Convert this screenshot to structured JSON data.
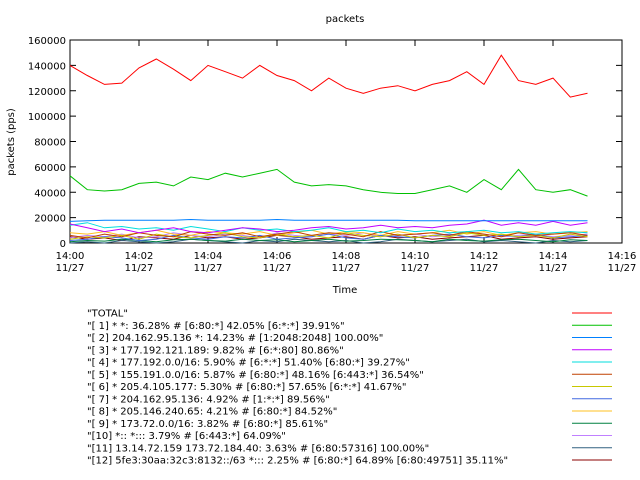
{
  "chart_data": {
    "type": "line",
    "title": "packets",
    "ylabel": "packets (pps)",
    "xlabel": "Time",
    "xlim": [
      0,
      16
    ],
    "ylim": [
      0,
      160000
    ],
    "yticks": [
      0,
      20000,
      40000,
      60000,
      80000,
      100000,
      120000,
      140000,
      160000
    ],
    "xticks": [
      {
        "value": 0,
        "label": "14:00",
        "sublabel": "11/27"
      },
      {
        "value": 2,
        "label": "14:02",
        "sublabel": "11/27"
      },
      {
        "value": 4,
        "label": "14:04",
        "sublabel": "11/27"
      },
      {
        "value": 6,
        "label": "14:06",
        "sublabel": "11/27"
      },
      {
        "value": 8,
        "label": "14:08",
        "sublabel": "11/27"
      },
      {
        "value": 10,
        "label": "14:10",
        "sublabel": "11/27"
      },
      {
        "value": 12,
        "label": "14:12",
        "sublabel": "11/27"
      },
      {
        "value": 14,
        "label": "14:14",
        "sublabel": "11/27"
      },
      {
        "value": 16,
        "label": "14:16",
        "sublabel": "11/27"
      }
    ],
    "x": [
      0,
      0.5,
      1,
      1.5,
      2,
      2.5,
      3,
      3.5,
      4,
      4.5,
      5,
      5.5,
      6,
      6.5,
      7,
      7.5,
      8,
      8.5,
      9,
      9.5,
      10,
      10.5,
      11,
      11.5,
      12,
      12.5,
      13,
      13.5,
      14,
      14.5,
      15
    ],
    "series": [
      {
        "name": "\"TOTAL\"",
        "color": "#ff0000",
        "values": [
          140000,
          132000,
          125000,
          126000,
          138000,
          145000,
          137000,
          128000,
          140000,
          135000,
          130000,
          140000,
          132000,
          128000,
          120000,
          130000,
          122000,
          118000,
          122000,
          124000,
          120000,
          125000,
          128000,
          135000,
          125000,
          148000,
          128000,
          125000,
          130000,
          115000,
          118000
        ]
      },
      {
        "name": "\"[ 1] * *: 36.28% # [6:80:*] 42.05% [6:*:*] 39.91%\"",
        "color": "#00c000",
        "values": [
          53000,
          42000,
          41000,
          42000,
          47000,
          48000,
          45000,
          52000,
          50000,
          55000,
          52000,
          55000,
          58000,
          48000,
          45000,
          46000,
          45000,
          42000,
          40000,
          39000,
          39000,
          42000,
          45000,
          40000,
          50000,
          42000,
          58000,
          42000,
          40000,
          42000,
          37000
        ]
      },
      {
        "name": "\"[ 2] 204.162.95.136 *: 14.23% # [1:2048:2048] 100.00%\"",
        "color": "#0080ff",
        "values": [
          17000,
          17500,
          18000,
          18000,
          18000,
          18000,
          18000,
          18500,
          18000,
          18000,
          18000,
          18000,
          18500,
          18000,
          18000,
          18000,
          18000,
          18000,
          18000,
          18000,
          17500,
          17500,
          17500,
          17500,
          17500,
          17500,
          17500,
          17500,
          17500,
          17500,
          17500
        ]
      },
      {
        "name": "\"[ 3] * 177.192.121.189: 9.82% # [6:*:80] 80.86%\"",
        "color": "#c000ff",
        "values": [
          15000,
          12000,
          9000,
          11000,
          8000,
          10000,
          12000,
          9000,
          8000,
          10000,
          12000,
          11000,
          9000,
          10000,
          12000,
          13000,
          11000,
          12000,
          14000,
          12000,
          13000,
          12000,
          14000,
          15000,
          18000,
          14000,
          16000,
          14000,
          17000,
          14000,
          16000
        ]
      },
      {
        "name": "\"[ 4] * 177.192.0.0/16: 5.90% # [6:*:*] 51.40% [6:80:*] 39.27%\"",
        "color": "#00dddd",
        "values": [
          14000,
          16000,
          12000,
          13000,
          11000,
          12000,
          10000,
          13000,
          11000,
          9000,
          12000,
          10000,
          11000,
          9000,
          10000,
          12000,
          9000,
          10000,
          8000,
          11000,
          9000,
          10000,
          8000,
          9000,
          10000,
          8000,
          9000,
          7000,
          8000,
          9000,
          8000
        ]
      },
      {
        "name": "\"[ 5] * 155.191.0.0/16: 5.87% # [6:80:*] 48.16% [6:443:*] 36.54%\"",
        "color": "#c04000",
        "values": [
          6000,
          4000,
          7000,
          5000,
          8000,
          6000,
          5000,
          9000,
          7000,
          6000,
          8000,
          5000,
          7000,
          9000,
          6000,
          8000,
          7000,
          5000,
          9000,
          6000,
          7000,
          8000,
          6000,
          9000,
          7000,
          5000,
          8000,
          6000,
          7000,
          8000,
          6000
        ]
      },
      {
        "name": "\"[ 6] * 205.4.105.177: 5.30% # [6:80:*] 57.65% [6:*:*] 41.67%\"",
        "color": "#c8c800",
        "values": [
          3000,
          5000,
          4000,
          6000,
          3000,
          7000,
          5000,
          4000,
          6000,
          8000,
          5000,
          4000,
          7000,
          5000,
          6000,
          4000,
          8000,
          6000,
          5000,
          7000,
          4000,
          6000,
          5000,
          8000,
          6000,
          7000,
          5000,
          6000,
          4000,
          7000,
          5000
        ]
      },
      {
        "name": "\"[ 7] * 204.162.95.136: 4.92% # [1:*:*] 89.56%\"",
        "color": "#4169e1",
        "values": [
          2000,
          3000,
          5000,
          4000,
          2000,
          3000,
          6000,
          4000,
          3000,
          5000,
          4000,
          6000,
          3000,
          4000,
          5000,
          7000,
          4000,
          3000,
          6000,
          5000,
          4000,
          6000,
          7000,
          5000,
          4000,
          6000,
          5000,
          7000,
          4000,
          5000,
          6000
        ]
      },
      {
        "name": "\"[ 8] * 205.146.240.65: 4.21% # [6:80:*] 84.52%\"",
        "color": "#ffc020",
        "values": [
          8000,
          7000,
          9000,
          6000,
          8000,
          10000,
          7000,
          6000,
          9000,
          8000,
          7000,
          9000,
          6000,
          8000,
          10000,
          7000,
          9000,
          8000,
          6000,
          9000,
          7000,
          8000,
          10000,
          7000,
          9000,
          6000,
          8000,
          9000,
          7000,
          8000,
          9000
        ]
      },
      {
        "name": "\"[ 9] * 173.72.0.0/16: 3.82% # [6:80:*] 85.61%\"",
        "color": "#008040",
        "values": [
          1000,
          2000,
          1500,
          3000,
          2000,
          1000,
          2500,
          3000,
          2000,
          1500,
          3000,
          2000,
          2500,
          1000,
          2000,
          3000,
          1500,
          2000,
          3000,
          2500,
          2000,
          1000,
          3000,
          2000,
          1500,
          2500,
          3000,
          2000,
          1000,
          2500,
          2000
        ]
      },
      {
        "name": "\"[10] *:: *::: 3.79% # [6:443:*] 64.09%\"",
        "color": "#c080ff",
        "values": [
          4000,
          6000,
          5000,
          7000,
          4000,
          5000,
          8000,
          6000,
          5000,
          7000,
          6000,
          4000,
          8000,
          6000,
          5000,
          7000,
          6000,
          8000,
          5000,
          6000,
          7000,
          5000,
          6000,
          8000,
          7000,
          5000,
          6000,
          7000,
          5000,
          6000,
          7000
        ]
      },
      {
        "name": "\"[11] 13.14.72.159 173.72.184.40: 3.63% # [6:80:57316] 100.00%\"",
        "color": "#306080",
        "values": [
          0,
          1000,
          0,
          2000,
          1000,
          0,
          1000,
          3000,
          2000,
          1000,
          0,
          2000,
          1000,
          3000,
          2000,
          1000,
          2000,
          0,
          1000,
          3000,
          2000,
          1000,
          2000,
          3000,
          1000,
          2000,
          1000,
          0,
          2000,
          1000,
          2000
        ]
      },
      {
        "name": "\"[12] 5fe3:30aa:32c3:8132::/63 *::: 2.25% # [6:80:*] 64.89% [6:80:49751] 35.11%\"",
        "color": "#8b0000",
        "values": [
          5000,
          3000,
          4000,
          2000,
          5000,
          4000,
          3000,
          6000,
          4000,
          5000,
          3000,
          4000,
          6000,
          5000,
          3000,
          4000,
          5000,
          3000,
          6000,
          4000,
          5000,
          3000,
          4000,
          5000,
          6000,
          3000,
          4000,
          5000,
          3000,
          4000,
          5000
        ]
      }
    ]
  }
}
